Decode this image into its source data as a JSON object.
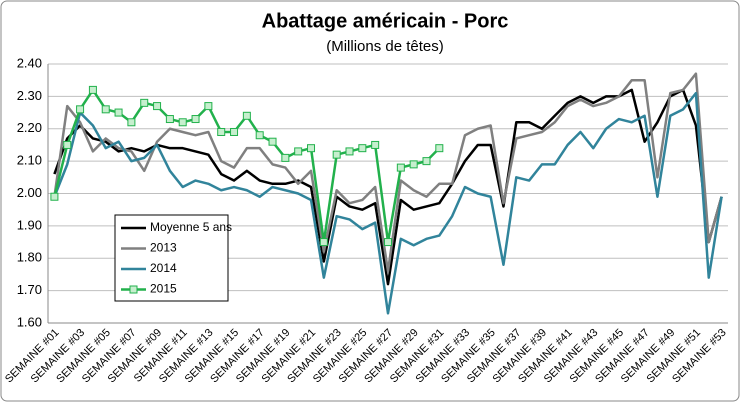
{
  "chart_data": {
    "type": "line",
    "title": "Abattage américain - Porc",
    "subtitle": "(Millions de têtes)",
    "categories": [
      "SEMAINE #01",
      null,
      "SEMAINE #03",
      null,
      "SEMAINE #05",
      null,
      "SEMAINE #07",
      null,
      "SEMAINE #09",
      null,
      "SEMAINE #11",
      null,
      "SEMAINE #13",
      null,
      "SEMAINE #15",
      null,
      "SEMAINE #17",
      null,
      "SEMAINE #19",
      null,
      "SEMAINE #21",
      null,
      "SEMAINE #23",
      null,
      "SEMAINE #25",
      null,
      "SEMAINE #27",
      null,
      "SEMAINE #29",
      null,
      "SEMAINE #31",
      null,
      "SEMAINE #33",
      null,
      "SEMAINE #35",
      null,
      "SEMAINE #37",
      null,
      "SEMAINE #39",
      null,
      "SEMAINE #41",
      null,
      "SEMAINE #43",
      null,
      "SEMAINE #45",
      null,
      "SEMAINE #47",
      null,
      "SEMAINE #49",
      null,
      "SEMAINE #51",
      null,
      "SEMAINE #53"
    ],
    "series": [
      {
        "name": "Moyenne 5 ans",
        "color": "#000000",
        "values": [
          2.06,
          2.17,
          2.21,
          2.17,
          2.16,
          2.13,
          2.14,
          2.13,
          2.15,
          2.14,
          2.14,
          2.13,
          2.12,
          2.06,
          2.04,
          2.07,
          2.04,
          2.03,
          2.03,
          2.04,
          2.02,
          1.79,
          1.99,
          1.96,
          1.95,
          1.97,
          1.72,
          1.98,
          1.95,
          1.96,
          1.97,
          2.03,
          2.1,
          2.15,
          2.15,
          1.96,
          2.22,
          2.22,
          2.2,
          2.24,
          2.28,
          2.3,
          2.28,
          2.3,
          2.3,
          2.32,
          2.16,
          2.22,
          2.3,
          2.32,
          2.21,
          1.85,
          1.99
        ]
      },
      {
        "name": "2013",
        "color": "#808080",
        "values": [
          1.99,
          2.27,
          2.22,
          2.13,
          2.17,
          2.14,
          2.13,
          2.07,
          2.16,
          2.2,
          2.19,
          2.18,
          2.19,
          2.1,
          2.08,
          2.14,
          2.14,
          2.09,
          2.08,
          2.03,
          2.07,
          1.82,
          2.01,
          1.97,
          1.98,
          2.02,
          1.76,
          2.04,
          2.01,
          1.99,
          2.03,
          2.03,
          2.18,
          2.2,
          2.21,
          1.97,
          2.17,
          2.18,
          2.19,
          2.22,
          2.27,
          2.29,
          2.27,
          2.28,
          2.3,
          2.35,
          2.35,
          2.05,
          2.31,
          2.32,
          2.37,
          1.85,
          1.99
        ]
      },
      {
        "name": "2014",
        "color": "#31849b",
        "values": [
          1.99,
          2.09,
          2.25,
          2.21,
          2.14,
          2.16,
          2.1,
          2.11,
          2.15,
          2.07,
          2.02,
          2.04,
          2.03,
          2.01,
          2.02,
          2.01,
          1.99,
          2.02,
          2.01,
          2.0,
          1.98,
          1.74,
          1.93,
          1.92,
          1.89,
          1.91,
          1.63,
          1.86,
          1.84,
          1.86,
          1.87,
          1.93,
          2.02,
          2.0,
          1.99,
          1.78,
          2.05,
          2.04,
          2.09,
          2.09,
          2.15,
          2.19,
          2.14,
          2.2,
          2.23,
          2.22,
          2.24,
          1.99,
          2.24,
          2.26,
          2.31,
          1.74,
          1.99
        ]
      },
      {
        "name": "2015",
        "color": "#22b14c",
        "marker": "square",
        "values": [
          1.99,
          2.15,
          2.26,
          2.32,
          2.26,
          2.25,
          2.22,
          2.28,
          2.27,
          2.23,
          2.22,
          2.23,
          2.27,
          2.19,
          2.19,
          2.24,
          2.18,
          2.16,
          2.11,
          2.13,
          2.14,
          1.85,
          2.12,
          2.13,
          2.14,
          2.15,
          1.85,
          2.08,
          2.09,
          2.1,
          2.14,
          null,
          null,
          null,
          null,
          null,
          null,
          null,
          null,
          null,
          null,
          null,
          null,
          null,
          null,
          null,
          null,
          null,
          null,
          null,
          null,
          null,
          null
        ]
      }
    ],
    "ylim": [
      1.6,
      2.4
    ],
    "yticks": [
      {
        "value": 1.6,
        "label": "1.60"
      },
      {
        "value": 1.7,
        "label": "1.70"
      },
      {
        "value": 1.8,
        "label": "1.80"
      },
      {
        "value": 1.9,
        "label": "1.90"
      },
      {
        "value": 2.0,
        "label": "2.00"
      },
      {
        "value": 2.1,
        "label": "2.10"
      },
      {
        "value": 2.2,
        "label": "2.20"
      },
      {
        "value": 2.3,
        "label": "2.30"
      },
      {
        "value": 2.4,
        "label": "2.40"
      }
    ],
    "grid": true
  }
}
